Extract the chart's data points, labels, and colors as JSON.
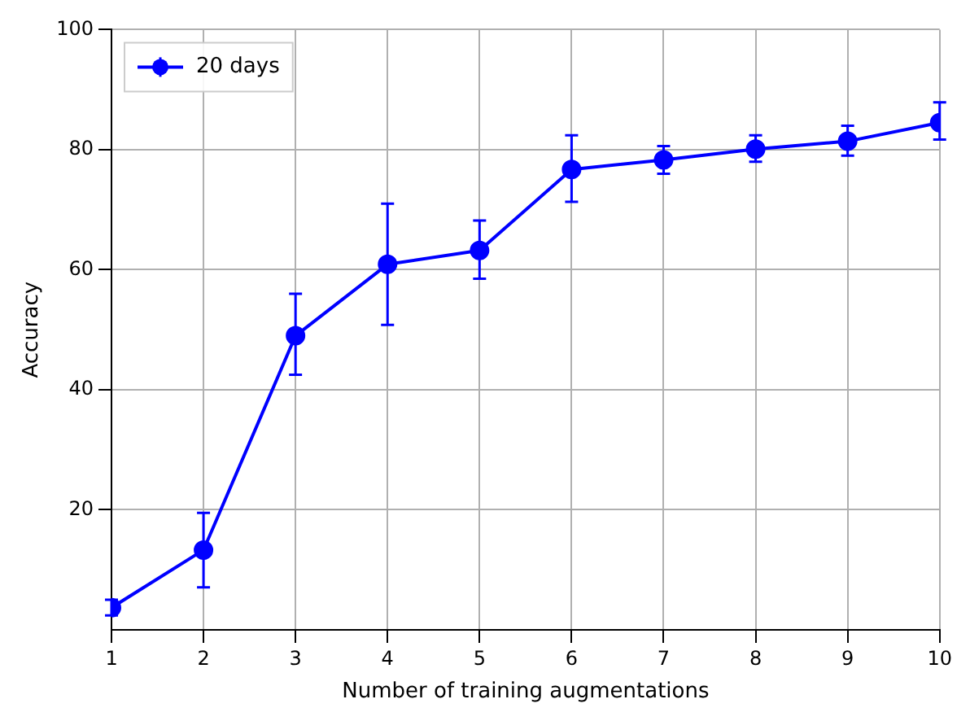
{
  "chart_data": {
    "type": "line",
    "xlabel": "Number of training augmentations",
    "ylabel": "Accuracy",
    "x": [
      1,
      2,
      3,
      4,
      5,
      6,
      7,
      8,
      9,
      10
    ],
    "series": [
      {
        "name": "20 days",
        "color": "#0000ff",
        "values": [
          3.7,
          13.3,
          49.0,
          60.9,
          63.2,
          76.7,
          78.3,
          80.1,
          81.4,
          84.5
        ],
        "errors": [
          [
            2.4,
            5.0
          ],
          [
            7.1,
            19.5
          ],
          [
            42.5,
            56.0
          ],
          [
            50.8,
            71.0
          ],
          [
            58.5,
            68.2
          ],
          [
            71.3,
            82.4
          ],
          [
            76.0,
            80.6
          ],
          [
            78.0,
            82.4
          ],
          [
            79.0,
            84.0
          ],
          [
            81.7,
            87.9
          ]
        ]
      }
    ],
    "xlim": [
      1,
      10
    ],
    "xticks": [
      1,
      2,
      3,
      4,
      5,
      6,
      7,
      8,
      9,
      10
    ],
    "ylim": [
      0,
      100
    ],
    "yticks": [
      20,
      40,
      60,
      80,
      100
    ],
    "grid": true,
    "legend": "top left",
    "marker": "circle",
    "line_style": "solid"
  }
}
